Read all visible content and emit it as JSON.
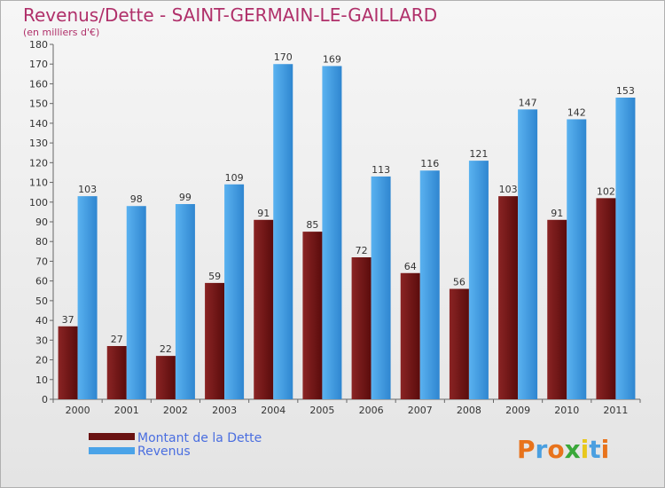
{
  "chart_data": {
    "type": "bar",
    "title": "Revenus/Dette - SAINT-GERMAIN-LE-GAILLARD",
    "subtitle": "(en milliers d'€)",
    "categories": [
      "2000",
      "2001",
      "2002",
      "2003",
      "2004",
      "2005",
      "2006",
      "2007",
      "2008",
      "2009",
      "2010",
      "2011"
    ],
    "series": [
      {
        "name": "Montant de la Dette",
        "values": [
          37,
          27,
          22,
          59,
          91,
          85,
          72,
          64,
          56,
          103,
          91,
          102
        ],
        "color": "#7a1a1a"
      },
      {
        "name": "Revenus",
        "values": [
          103,
          98,
          99,
          109,
          170,
          169,
          113,
          116,
          121,
          147,
          142,
          153
        ],
        "color": "#4aa3e8"
      }
    ],
    "ylim": [
      0,
      180
    ],
    "ytick_step": 10,
    "grid": false,
    "legend_position": "bottom-left"
  },
  "logo": {
    "letters": [
      "P",
      "r",
      "o",
      "x",
      "i",
      "t",
      "i"
    ],
    "colors": [
      "#e8731c",
      "#4a9fe0",
      "#e8731c",
      "#3aa83a",
      "#e8c81c",
      "#4a9fe0",
      "#e8731c"
    ]
  }
}
